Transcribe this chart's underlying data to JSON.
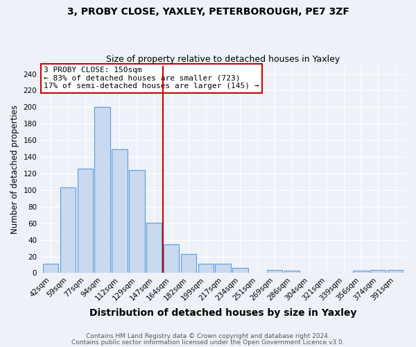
{
  "title1": "3, PROBY CLOSE, YAXLEY, PETERBOROUGH, PE7 3ZF",
  "title2": "Size of property relative to detached houses in Yaxley",
  "xlabel": "Distribution of detached houses by size in Yaxley",
  "ylabel": "Number of detached properties",
  "categories": [
    "42sqm",
    "59sqm",
    "77sqm",
    "94sqm",
    "112sqm",
    "129sqm",
    "147sqm",
    "164sqm",
    "182sqm",
    "199sqm",
    "217sqm",
    "234sqm",
    "251sqm",
    "269sqm",
    "286sqm",
    "304sqm",
    "321sqm",
    "339sqm",
    "356sqm",
    "374sqm",
    "391sqm"
  ],
  "values": [
    11,
    103,
    126,
    200,
    149,
    124,
    61,
    35,
    23,
    11,
    11,
    6,
    0,
    4,
    3,
    0,
    0,
    0,
    3,
    4,
    4
  ],
  "bar_color": "#c9d9f0",
  "bar_edge_color": "#5b9bd5",
  "vline_x": 6.5,
  "vline_color": "#cc0000",
  "annotation_line1": "3 PROBY CLOSE: 150sqm",
  "annotation_line2": "← 83% of detached houses are smaller (723)",
  "annotation_line3": "17% of semi-detached houses are larger (145) →",
  "annotation_box_color": "white",
  "annotation_box_edge": "#cc0000",
  "ylim": [
    0,
    250
  ],
  "yticks": [
    0,
    20,
    40,
    60,
    80,
    100,
    120,
    140,
    160,
    180,
    200,
    220,
    240
  ],
  "footer1": "Contains HM Land Registry data © Crown copyright and database right 2024.",
  "footer2": "Contains public sector information licensed under the Open Government Licence v3.0.",
  "title1_fontsize": 10,
  "title2_fontsize": 9,
  "xlabel_fontsize": 10,
  "ylabel_fontsize": 8.5,
  "tick_fontsize": 7.5,
  "annotation_fontsize": 8,
  "footer_fontsize": 6.5,
  "bg_color": "#eef2f8"
}
